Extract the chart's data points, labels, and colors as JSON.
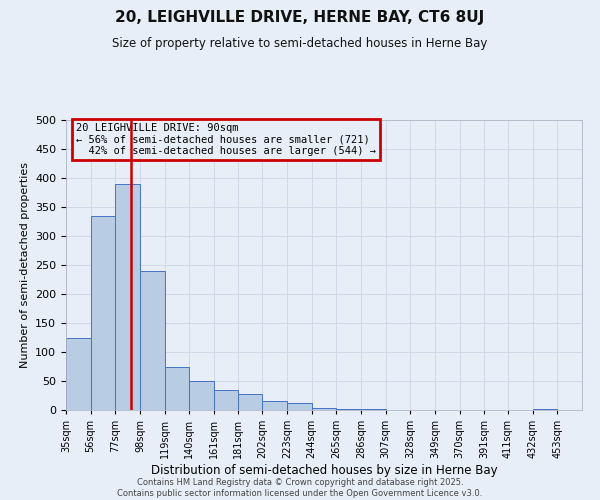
{
  "title1": "20, LEIGHVILLE DRIVE, HERNE BAY, CT6 8UJ",
  "title2": "Size of property relative to semi-detached houses in Herne Bay",
  "xlabel": "Distribution of semi-detached houses by size in Herne Bay",
  "ylabel": "Number of semi-detached properties",
  "property_label": "20 LEIGHVILLE DRIVE: 90sqm",
  "pct_smaller": 56,
  "n_smaller": 721,
  "pct_larger": 42,
  "n_larger": 544,
  "bin_labels": [
    "35sqm",
    "56sqm",
    "77sqm",
    "98sqm",
    "119sqm",
    "140sqm",
    "161sqm",
    "181sqm",
    "202sqm",
    "223sqm",
    "244sqm",
    "265sqm",
    "286sqm",
    "307sqm",
    "328sqm",
    "349sqm",
    "370sqm",
    "391sqm",
    "411sqm",
    "432sqm",
    "453sqm"
  ],
  "bin_edges": [
    35,
    56,
    77,
    98,
    119,
    140,
    161,
    181,
    202,
    223,
    244,
    265,
    286,
    307,
    328,
    349,
    370,
    391,
    411,
    432,
    453,
    474
  ],
  "bar_values": [
    125,
    335,
    390,
    240,
    75,
    50,
    35,
    28,
    15,
    12,
    4,
    1,
    1,
    0,
    0,
    0,
    0,
    0,
    0,
    1,
    0
  ],
  "bar_color": "#b8cce4",
  "bar_edge_color": "#4472c4",
  "vline_x": 90,
  "vline_color": "#cc0000",
  "box_color": "#cc0000",
  "grid_color": "#d0d8e8",
  "bg_color": "#e8eef8",
  "footer": "Contains HM Land Registry data © Crown copyright and database right 2025.\nContains public sector information licensed under the Open Government Licence v3.0.",
  "ylim": [
    0,
    500
  ],
  "yticks": [
    0,
    50,
    100,
    150,
    200,
    250,
    300,
    350,
    400,
    450,
    500
  ]
}
